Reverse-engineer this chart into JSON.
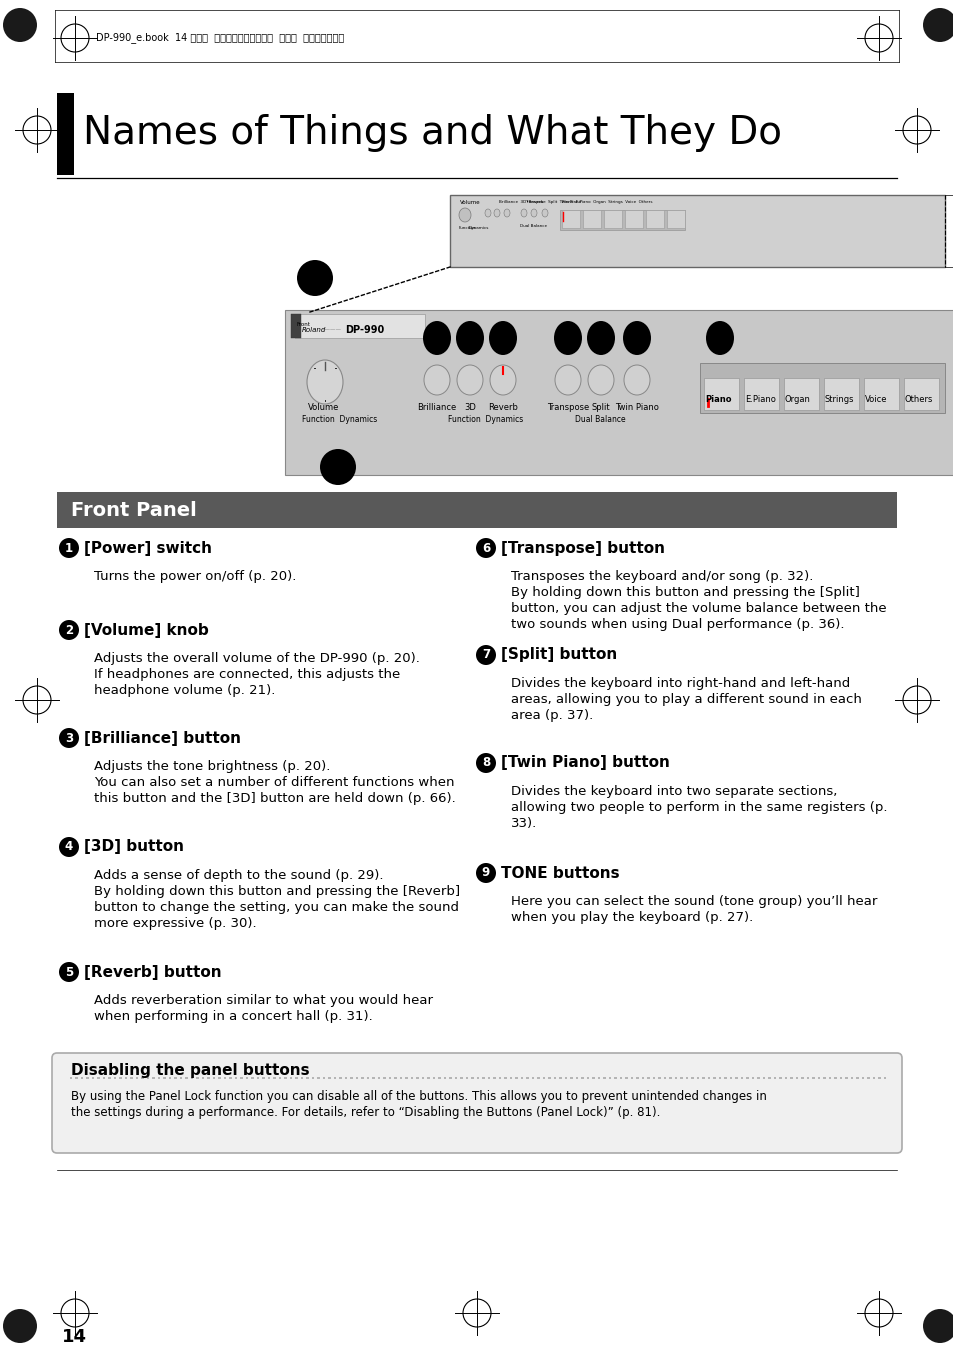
{
  "page_title": "Names of Things and What They Do",
  "header_text": "DP-990_e.book  14 ページ  ２００９年２月１７日  火曜日  午前８時３０分",
  "section_title": "Front Panel",
  "page_number": "14",
  "bg_color": "#ffffff",
  "section_bg_color": "#595959",
  "section_text_color": "#ffffff",
  "note_bg_color": "#f0f0f0",
  "note_border_color": "#aaaaaa",
  "items_left": [
    {
      "num": "1",
      "title": "[Power] switch",
      "lines": [
        "Turns the power on/off (p. 20)."
      ]
    },
    {
      "num": "2",
      "title": "[Volume] knob",
      "lines": [
        "Adjusts the overall volume of the DP-990 (p. 20).",
        "If headphones are connected, this adjusts the",
        "headphone volume (p. 21)."
      ]
    },
    {
      "num": "3",
      "title": "[Brilliance] button",
      "lines": [
        "Adjusts the tone brightness (p. 20).",
        "You can also set a number of different functions when",
        "this button and the [3D] button are held down (p. 66)."
      ]
    },
    {
      "num": "4",
      "title": "[3D] button",
      "lines": [
        "Adds a sense of depth to the sound (p. 29).",
        "By holding down this button and pressing the [Reverb]",
        "button to change the setting, you can make the sound",
        "more expressive (p. 30)."
      ]
    },
    {
      "num": "5",
      "title": "[Reverb] button",
      "lines": [
        "Adds reverberation similar to what you would hear",
        "when performing in a concert hall (p. 31)."
      ]
    }
  ],
  "items_right": [
    {
      "num": "6",
      "title": "[Transpose] button",
      "lines": [
        "Transposes the keyboard and/or song (p. 32).",
        "By holding down this button and pressing the [Split]",
        "button, you can adjust the volume balance between the",
        "two sounds when using Dual performance (p. 36)."
      ]
    },
    {
      "num": "7",
      "title": "[Split] button",
      "lines": [
        "Divides the keyboard into right-hand and left-hand",
        "areas, allowing you to play a different sound in each",
        "area (p. 37)."
      ]
    },
    {
      "num": "8",
      "title": "[Twin Piano] button",
      "lines": [
        "Divides the keyboard into two separate sections,",
        "allowing two people to perform in the same registers (p.",
        "33)."
      ]
    },
    {
      "num": "9",
      "title": "TONE buttons",
      "lines": [
        "Here you can select the sound (tone group) you’ll hear",
        "when you play the keyboard (p. 27)."
      ]
    }
  ],
  "note_title": "Disabling the panel buttons",
  "note_line1": "By using the Panel Lock function you can disable all of the buttons. This allows you to prevent unintended changes in",
  "note_line2": "the settings during a performance. For details, refer to “Disabling the Buttons (Panel Lock)” (p. 81)."
}
